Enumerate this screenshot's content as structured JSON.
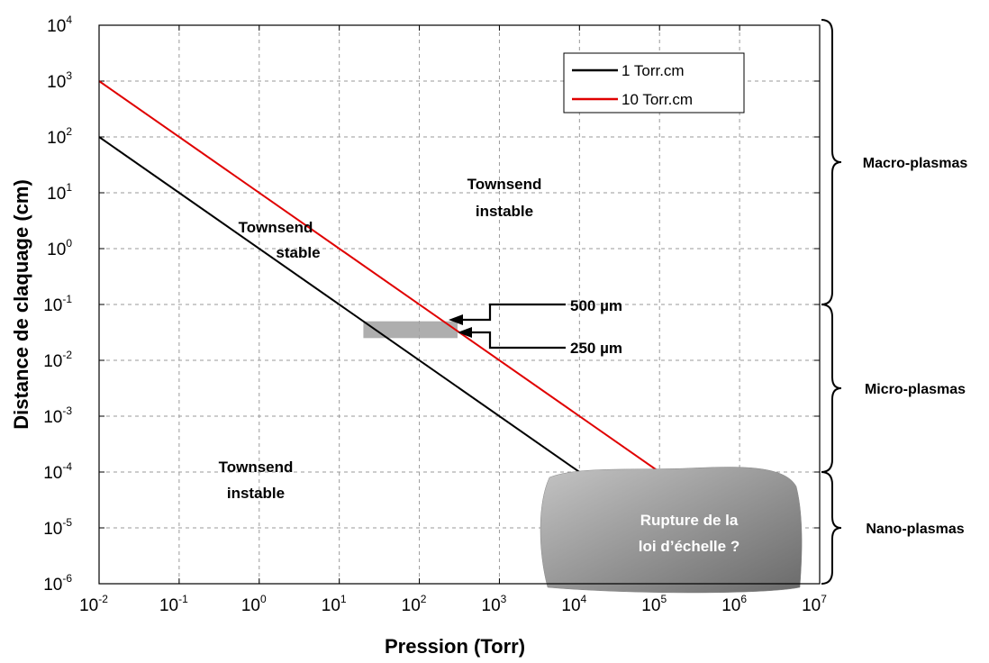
{
  "chart_data": {
    "type": "line",
    "x_scale": "log",
    "y_scale": "log",
    "xlabel": "Pression (Torr)",
    "ylabel": "Distance de claquage (cm)",
    "xlim": [
      0.01,
      10000000
    ],
    "ylim": [
      1e-06,
      10000
    ],
    "grid": true,
    "legend_position": "top-right",
    "x_ticks": [
      {
        "base": "10",
        "exp": "-2"
      },
      {
        "base": "10",
        "exp": "-1"
      },
      {
        "base": "10",
        "exp": "0"
      },
      {
        "base": "10",
        "exp": "1"
      },
      {
        "base": "10",
        "exp": "2"
      },
      {
        "base": "10",
        "exp": "3"
      },
      {
        "base": "10",
        "exp": "4"
      },
      {
        "base": "10",
        "exp": "5"
      },
      {
        "base": "10",
        "exp": "6"
      },
      {
        "base": "10",
        "exp": "7"
      }
    ],
    "y_ticks": [
      {
        "base": "10",
        "exp": "-6"
      },
      {
        "base": "10",
        "exp": "-5"
      },
      {
        "base": "10",
        "exp": "-4"
      },
      {
        "base": "10",
        "exp": "-3"
      },
      {
        "base": "10",
        "exp": "-2"
      },
      {
        "base": "10",
        "exp": "-1"
      },
      {
        "base": "10",
        "exp": "0"
      },
      {
        "base": "10",
        "exp": "1"
      },
      {
        "base": "10",
        "exp": "2"
      },
      {
        "base": "10",
        "exp": "3"
      },
      {
        "base": "10",
        "exp": "4"
      }
    ],
    "series": [
      {
        "name": "1 Torr.cm",
        "color": "#000000",
        "x": [
          0.01,
          10000
        ],
        "y": [
          100,
          0.0001
        ]
      },
      {
        "name": "10 Torr.cm",
        "color": "#e00000",
        "x": [
          0.01,
          100000
        ],
        "y": [
          1000,
          0.0001
        ]
      }
    ],
    "shaded_band": {
      "x": [
        20,
        300
      ],
      "y": [
        0.025,
        0.05
      ],
      "color": "#a0a0a0"
    },
    "annotations": [
      {
        "id": "townsend_stable_1",
        "text": "Townsend"
      },
      {
        "id": "townsend_stable_2",
        "text": "stable"
      },
      {
        "id": "townsend_instable_top_1",
        "text": "Townsend"
      },
      {
        "id": "townsend_instable_top_2",
        "text": "instable"
      },
      {
        "id": "townsend_instable_bottom_1",
        "text": "Townsend"
      },
      {
        "id": "townsend_instable_bottom_2",
        "text": "instable"
      },
      {
        "id": "label_500",
        "text": "500 µm"
      },
      {
        "id": "label_250",
        "text": "250 µm"
      },
      {
        "id": "rupture_1",
        "text": "Rupture de la"
      },
      {
        "id": "rupture_2",
        "text": "loi d’échelle ?"
      }
    ],
    "regions": [
      {
        "name": "Macro-plasmas",
        "y_range": [
          0.1,
          10000
        ]
      },
      {
        "name": "Micro-plasmas",
        "y_range": [
          0.0001,
          0.1
        ]
      },
      {
        "name": "Nano-plasmas",
        "y_range": [
          1e-06,
          0.0001
        ]
      }
    ]
  }
}
